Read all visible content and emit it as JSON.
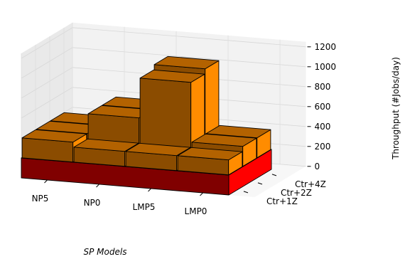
{
  "chart_data": {
    "type": "bar3d",
    "title": "",
    "xlabel": "SP Models",
    "ylabel": "",
    "zlabel": "Throughput (#Jobs/day)",
    "x_categories": [
      "NP5",
      "NP0",
      "LMP5",
      "LMP0"
    ],
    "y_categories": [
      "Ctr+1Z",
      "Ctr+2Z",
      "Ctr+4Z"
    ],
    "z_ticks": [
      "0",
      "200",
      "400",
      "600",
      "800",
      "1000",
      "1200"
    ],
    "zlim": [
      0,
      1250
    ],
    "grid": true,
    "base_layer": {
      "name": "",
      "value": 200,
      "colors": {
        "front": "#800000",
        "right": "#ff0000",
        "top": "#ff2a2a"
      }
    },
    "bars": [
      {
        "x": "NP5",
        "y": "Ctr+4Z",
        "value": 400
      },
      {
        "x": "NP0",
        "y": "Ctr+4Z",
        "value": 600
      },
      {
        "x": "LMP5",
        "y": "Ctr+4Z",
        "value": 1050
      },
      {
        "x": "LMP0",
        "y": "Ctr+4Z",
        "value": 400
      },
      {
        "x": "NP5",
        "y": "Ctr+2Z",
        "value": 400
      },
      {
        "x": "NP0",
        "y": "Ctr+2Z",
        "value": 600
      },
      {
        "x": "LMP5",
        "y": "Ctr+2Z",
        "value": 1000
      },
      {
        "x": "LMP0",
        "y": "Ctr+2Z",
        "value": 400
      },
      {
        "x": "NP5",
        "y": "Ctr+1Z",
        "value": 400
      },
      {
        "x": "NP0",
        "y": "Ctr+1Z",
        "value": 350
      },
      {
        "x": "LMP5",
        "y": "Ctr+1Z",
        "value": 350
      },
      {
        "x": "LMP0",
        "y": "Ctr+1Z",
        "value": 350
      }
    ],
    "bar_colors": {
      "front": "#8b4c00",
      "right": "#ff8c00",
      "top": "#b36200"
    }
  }
}
